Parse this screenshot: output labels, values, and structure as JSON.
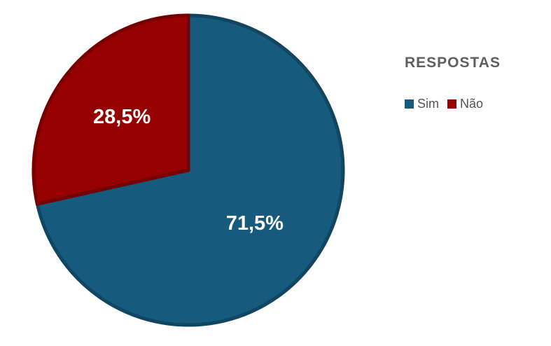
{
  "chart_data": {
    "type": "pie",
    "title": "",
    "legend_title": "RESPOSTAS",
    "legend_position": "right",
    "start_angle_deg": 0,
    "direction": "clockwise",
    "slices": [
      {
        "name": "Sim",
        "value": 71.5,
        "label": "71,5%",
        "color": "#165a7d"
      },
      {
        "name": "Não",
        "value": 28.5,
        "label": "28,5%",
        "color": "#960000"
      }
    ]
  }
}
